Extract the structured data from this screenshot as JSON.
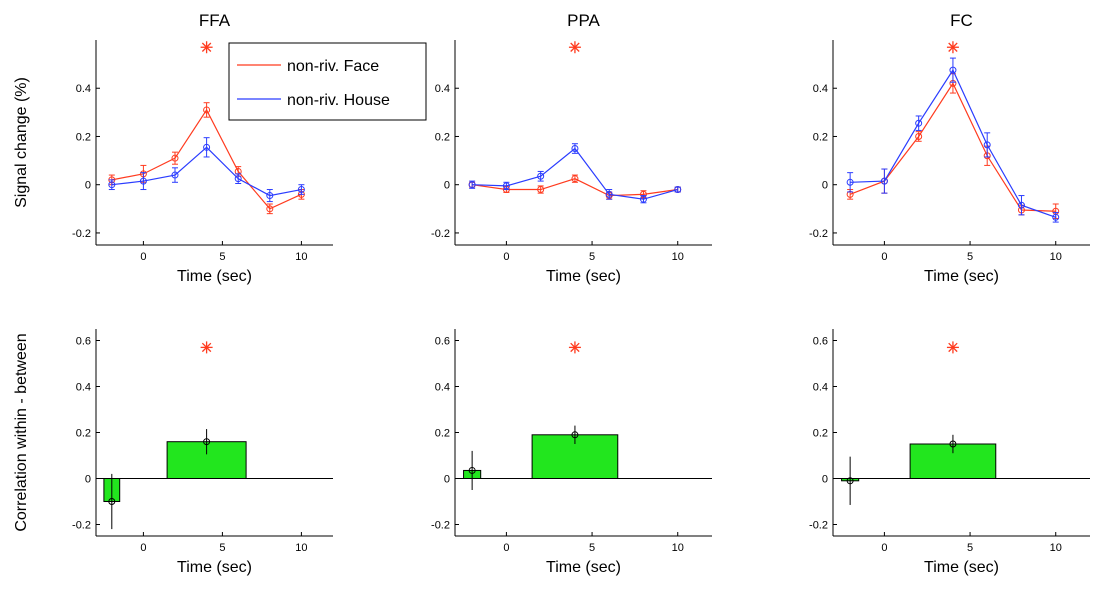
{
  "chart_data": [
    {
      "panel": "FFA signal",
      "type": "line",
      "title": "FFA",
      "xlabel": "Time (sec)",
      "ylabel": "Signal change (%)",
      "xlim": [
        -3,
        12
      ],
      "ylim": [
        -0.25,
        0.6
      ],
      "xticks": [
        0,
        5,
        10
      ],
      "yticks": [
        -0.2,
        0,
        0.2,
        0.4
      ],
      "ytick_labels": [
        "-0.2",
        "0",
        "0.2",
        "0.4"
      ],
      "significance_marker": {
        "symbol": "✳",
        "x": 4,
        "y": 0.57,
        "color": "#ff3b1f"
      },
      "legend": {
        "placement": "top-right",
        "entries": [
          "non-riv. Face",
          "non-riv. House"
        ]
      },
      "series": [
        {
          "name": "non-riv. Face",
          "color": "#ff3b1f",
          "x": [
            -2,
            0,
            2,
            4,
            6,
            8,
            10
          ],
          "y": [
            0.02,
            0.045,
            0.11,
            0.31,
            0.055,
            -0.1,
            -0.04
          ],
          "err": [
            0.02,
            0.035,
            0.025,
            0.03,
            0.02,
            0.02,
            0.02
          ]
        },
        {
          "name": "non-riv. House",
          "color": "#2a3cff",
          "x": [
            -2,
            0,
            2,
            4,
            6,
            8,
            10
          ],
          "y": [
            0.0,
            0.015,
            0.04,
            0.155,
            0.025,
            -0.045,
            -0.02
          ],
          "err": [
            0.02,
            0.035,
            0.03,
            0.04,
            0.02,
            0.025,
            0.02
          ]
        }
      ]
    },
    {
      "panel": "PPA signal",
      "type": "line",
      "title": "PPA",
      "xlabel": "Time (sec)",
      "ylabel": "",
      "xlim": [
        -3,
        12
      ],
      "ylim": [
        -0.25,
        0.6
      ],
      "xticks": [
        0,
        5,
        10
      ],
      "yticks": [
        -0.2,
        0,
        0.2,
        0.4
      ],
      "ytick_labels": [
        "-0.2",
        "0",
        "0.2",
        "0.4"
      ],
      "significance_marker": {
        "symbol": "✳",
        "x": 4,
        "y": 0.57,
        "color": "#ff3b1f"
      },
      "series": [
        {
          "name": "",
          "color": "#ff3b1f",
          "x": [
            -2,
            0,
            2,
            4,
            6,
            8,
            10
          ],
          "y": [
            0.0,
            -0.02,
            -0.02,
            0.025,
            -0.045,
            -0.04,
            -0.02
          ],
          "err": [
            0.01,
            0.012,
            0.015,
            0.015,
            0.015,
            0.015,
            0.01
          ]
        },
        {
          "name": "",
          "color": "#2a3cff",
          "x": [
            -2,
            0,
            2,
            4,
            6,
            8,
            10
          ],
          "y": [
            0.0,
            -0.005,
            0.035,
            0.15,
            -0.04,
            -0.06,
            -0.02
          ],
          "err": [
            0.015,
            0.015,
            0.02,
            0.02,
            0.02,
            0.015,
            0.01
          ]
        }
      ]
    },
    {
      "panel": "FC signal",
      "type": "line",
      "title": "FC",
      "xlabel": "Time (sec)",
      "ylabel": "",
      "xlim": [
        -3,
        12
      ],
      "ylim": [
        -0.25,
        0.6
      ],
      "xticks": [
        0,
        5,
        10
      ],
      "yticks": [
        -0.2,
        0,
        0.2,
        0.4
      ],
      "ytick_labels": [
        "-0.2",
        "0",
        "0.2",
        "0.4"
      ],
      "significance_marker": {
        "symbol": "✳",
        "x": 4,
        "y": 0.57,
        "color": "#ff3b1f"
      },
      "series": [
        {
          "name": "",
          "color": "#ff3b1f",
          "x": [
            -2,
            0,
            2,
            4,
            6,
            8,
            10
          ],
          "y": [
            -0.04,
            0.015,
            0.2,
            0.42,
            0.12,
            -0.105,
            -0.11
          ],
          "err": [
            0.02,
            0.05,
            0.02,
            0.04,
            0.04,
            0.02,
            0.03
          ]
        },
        {
          "name": "",
          "color": "#2a3cff",
          "x": [
            -2,
            0,
            2,
            4,
            6,
            8,
            10
          ],
          "y": [
            0.01,
            0.015,
            0.255,
            0.475,
            0.165,
            -0.085,
            -0.135
          ],
          "err": [
            0.04,
            0.05,
            0.03,
            0.05,
            0.05,
            0.04,
            0.02
          ]
        }
      ]
    },
    {
      "panel": "FFA correlation",
      "type": "bar",
      "xlabel": "Time (sec)",
      "ylabel": "Correlation within - between",
      "xlim": [
        -3,
        12
      ],
      "ylim": [
        -0.25,
        0.65
      ],
      "xticks": [
        0,
        5,
        10
      ],
      "yticks": [
        -0.2,
        0,
        0.2,
        0.4,
        0.6
      ],
      "ytick_labels": [
        "-0.2",
        "0",
        "0.2",
        "0.4",
        "0.6"
      ],
      "significance_marker": {
        "symbol": "✳",
        "x": 4,
        "y": 0.57,
        "color": "#ff3b1f"
      },
      "bar_color": "#22e61e",
      "bars": [
        {
          "x": -2,
          "width": 1,
          "value": -0.1,
          "err": 0.12
        },
        {
          "x": 4,
          "width": 5,
          "value": 0.16,
          "err": 0.055
        }
      ]
    },
    {
      "panel": "PPA correlation",
      "type": "bar",
      "xlabel": "Time (sec)",
      "ylabel": "",
      "xlim": [
        -3,
        12
      ],
      "ylim": [
        -0.25,
        0.65
      ],
      "xticks": [
        0,
        5,
        10
      ],
      "yticks": [
        -0.2,
        0,
        0.2,
        0.4,
        0.6
      ],
      "ytick_labels": [
        "-0.2",
        "0",
        "0.2",
        "0.4",
        "0.6"
      ],
      "significance_marker": {
        "symbol": "✳",
        "x": 4,
        "y": 0.57,
        "color": "#ff3b1f"
      },
      "bar_color": "#22e61e",
      "bars": [
        {
          "x": -2,
          "width": 1,
          "value": 0.035,
          "err": 0.085
        },
        {
          "x": 4,
          "width": 5,
          "value": 0.19,
          "err": 0.04
        }
      ]
    },
    {
      "panel": "FC correlation",
      "type": "bar",
      "xlabel": "Time (sec)",
      "ylabel": "",
      "xlim": [
        -3,
        12
      ],
      "ylim": [
        -0.25,
        0.65
      ],
      "xticks": [
        0,
        5,
        10
      ],
      "yticks": [
        -0.2,
        0,
        0.2,
        0.4,
        0.6
      ],
      "ytick_labels": [
        "-0.2",
        "0",
        "0.2",
        "0.4",
        "0.6"
      ],
      "significance_marker": {
        "symbol": "✳",
        "x": 4,
        "y": 0.57,
        "color": "#ff3b1f"
      },
      "bar_color": "#22e61e",
      "bars": [
        {
          "x": -2,
          "width": 1,
          "value": -0.01,
          "err": 0.105
        },
        {
          "x": 4,
          "width": 5,
          "value": 0.15,
          "err": 0.04
        }
      ]
    }
  ]
}
